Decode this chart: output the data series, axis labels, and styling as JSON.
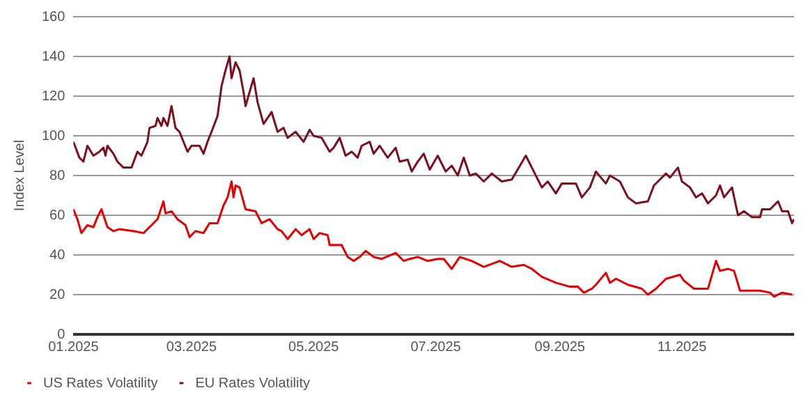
{
  "chart_data": {
    "type": "line",
    "ylabel": "Index Level",
    "ylim": [
      0,
      160
    ],
    "yticks": [
      0,
      20,
      40,
      60,
      80,
      100,
      120,
      140,
      160
    ],
    "xlim": [
      "2025-01-01",
      "2025-12-27"
    ],
    "xticks": [
      {
        "value": "2025-01-01",
        "label": "01.2025"
      },
      {
        "value": "2025-03-01",
        "label": "03.2025"
      },
      {
        "value": "2025-05-01",
        "label": "05.2025"
      },
      {
        "value": "2025-07-01",
        "label": "07.2025"
      },
      {
        "value": "2025-09-01",
        "label": "09.2025"
      },
      {
        "value": "2025-11-01",
        "label": "11.2025"
      }
    ],
    "grid": "y",
    "legend": "bottom",
    "marker": "none",
    "line_style": "solid",
    "series": [
      {
        "name": "US Rates Volatility",
        "color": "#e60000",
        "x": [
          "2025-01-01",
          "2025-01-03",
          "2025-01-05",
          "2025-01-08",
          "2025-01-11",
          "2025-01-13",
          "2025-01-15",
          "2025-01-18",
          "2025-01-21",
          "2025-01-24",
          "2025-01-31",
          "2025-02-05",
          "2025-02-07",
          "2025-02-12",
          "2025-02-15",
          "2025-02-16",
          "2025-02-19",
          "2025-02-22",
          "2025-02-26",
          "2025-02-28",
          "2025-03-03",
          "2025-03-07",
          "2025-03-10",
          "2025-03-14",
          "2025-03-17",
          "2025-03-19",
          "2025-03-21",
          "2025-03-22",
          "2025-03-23",
          "2025-03-25",
          "2025-03-28",
          "2025-04-02",
          "2025-04-05",
          "2025-04-09",
          "2025-04-13",
          "2025-04-15",
          "2025-04-18",
          "2025-04-22",
          "2025-04-25",
          "2025-04-29",
          "2025-05-01",
          "2025-05-04",
          "2025-05-08",
          "2025-05-09",
          "2025-05-15",
          "2025-05-18",
          "2025-05-21",
          "2025-05-24",
          "2025-05-27",
          "2025-05-31",
          "2025-06-04",
          "2025-06-11",
          "2025-06-15",
          "2025-06-18",
          "2025-06-22",
          "2025-06-27",
          "2025-07-02",
          "2025-07-05",
          "2025-07-09",
          "2025-07-13",
          "2025-07-19",
          "2025-07-25",
          "2025-08-02",
          "2025-08-08",
          "2025-08-14",
          "2025-08-18",
          "2025-08-23",
          "2025-08-30",
          "2025-09-06",
          "2025-09-10",
          "2025-09-13",
          "2025-09-17",
          "2025-09-19",
          "2025-09-24",
          "2025-09-26",
          "2025-09-29",
          "2025-10-05",
          "2025-10-12",
          "2025-10-15",
          "2025-10-19",
          "2025-10-24",
          "2025-10-31",
          "2025-11-02",
          "2025-11-07",
          "2025-11-14",
          "2025-11-18",
          "2025-11-20",
          "2025-11-24",
          "2025-11-27",
          "2025-11-30",
          "2025-12-10",
          "2025-12-15",
          "2025-12-17",
          "2025-12-21",
          "2025-12-26"
        ],
        "values": [
          63,
          58,
          51,
          55,
          54,
          59,
          63,
          54,
          52,
          53,
          52,
          51,
          53,
          58,
          67,
          61,
          62,
          58,
          55,
          49,
          52,
          51,
          56,
          56,
          65,
          69,
          77,
          69,
          75,
          74,
          63,
          62,
          56,
          58,
          53,
          52,
          48,
          53,
          50,
          53,
          48,
          51,
          50,
          45,
          45,
          39,
          37,
          39,
          42,
          39,
          38,
          41,
          37,
          38,
          39,
          37,
          38,
          38,
          33,
          39,
          37,
          34,
          37,
          34,
          35,
          33,
          29,
          26,
          24,
          24,
          21,
          23,
          25,
          31,
          26,
          28,
          25,
          23,
          20,
          23,
          28,
          30,
          27,
          23,
          23,
          37,
          32,
          33,
          32,
          22,
          22,
          21,
          19,
          21,
          20
        ]
      },
      {
        "name": "EU Rates Volatility",
        "color": "#7d0f1c",
        "x": [
          "2025-01-01",
          "2025-01-04",
          "2025-01-06",
          "2025-01-08",
          "2025-01-11",
          "2025-01-14",
          "2025-01-16",
          "2025-01-17",
          "2025-01-18",
          "2025-01-21",
          "2025-01-23",
          "2025-01-26",
          "2025-01-30",
          "2025-02-02",
          "2025-02-04",
          "2025-02-07",
          "2025-02-08",
          "2025-02-11",
          "2025-02-12",
          "2025-02-14",
          "2025-02-15",
          "2025-02-17",
          "2025-02-19",
          "2025-02-21",
          "2025-02-23",
          "2025-02-25",
          "2025-02-27",
          "2025-03-01",
          "2025-03-05",
          "2025-03-07",
          "2025-03-09",
          "2025-03-11",
          "2025-03-14",
          "2025-03-16",
          "2025-03-18",
          "2025-03-20",
          "2025-03-21",
          "2025-03-23",
          "2025-03-25",
          "2025-03-27",
          "2025-03-28",
          "2025-04-01",
          "2025-04-03",
          "2025-04-06",
          "2025-04-10",
          "2025-04-13",
          "2025-04-16",
          "2025-04-18",
          "2025-04-22",
          "2025-04-26",
          "2025-04-29",
          "2025-05-01",
          "2025-05-05",
          "2025-05-09",
          "2025-05-11",
          "2025-05-14",
          "2025-05-17",
          "2025-05-20",
          "2025-05-23",
          "2025-05-25",
          "2025-05-29",
          "2025-05-31",
          "2025-06-03",
          "2025-06-07",
          "2025-06-11",
          "2025-06-13",
          "2025-06-17",
          "2025-06-19",
          "2025-06-22",
          "2025-06-25",
          "2025-06-28",
          "2025-07-02",
          "2025-07-06",
          "2025-07-09",
          "2025-07-12",
          "2025-07-15",
          "2025-07-18",
          "2025-07-21",
          "2025-07-25",
          "2025-07-29",
          "2025-08-03",
          "2025-08-08",
          "2025-08-15",
          "2025-08-18",
          "2025-08-23",
          "2025-08-26",
          "2025-08-30",
          "2025-09-02",
          "2025-09-09",
          "2025-09-12",
          "2025-09-16",
          "2025-09-19",
          "2025-09-24",
          "2025-09-26",
          "2025-10-01",
          "2025-10-05",
          "2025-10-09",
          "2025-10-15",
          "2025-10-18",
          "2025-10-24",
          "2025-10-26",
          "2025-10-30",
          "2025-11-01",
          "2025-11-05",
          "2025-11-08",
          "2025-11-11",
          "2025-11-14",
          "2025-11-18",
          "2025-11-20",
          "2025-11-22",
          "2025-11-26",
          "2025-11-29",
          "2025-12-02",
          "2025-12-06",
          "2025-12-10",
          "2025-12-11",
          "2025-12-15",
          "2025-12-19",
          "2025-12-21",
          "2025-12-24",
          "2025-12-26",
          "2025-12-27"
        ],
        "values": [
          97,
          89,
          87,
          95,
          90,
          92,
          94,
          90,
          95,
          91,
          87,
          84,
          84,
          92,
          90,
          97,
          104,
          105,
          109,
          105,
          109,
          105,
          115,
          104,
          102,
          97,
          92,
          95,
          95,
          91,
          97,
          102,
          110,
          125,
          133,
          140,
          129,
          137,
          133,
          122,
          115,
          129,
          117,
          106,
          112,
          102,
          104,
          99,
          102,
          97,
          103,
          100,
          99,
          92,
          94,
          99,
          90,
          92,
          89,
          95,
          97,
          91,
          95,
          89,
          94,
          87,
          88,
          82,
          87,
          91,
          83,
          90,
          82,
          85,
          80,
          89,
          80,
          81,
          77,
          81,
          77,
          78,
          90,
          84,
          74,
          77,
          71,
          76,
          76,
          69,
          74,
          82,
          76,
          80,
          77,
          69,
          66,
          67,
          75,
          81,
          79,
          84,
          77,
          74,
          69,
          71,
          66,
          70,
          75,
          69,
          74,
          60,
          62,
          59,
          59,
          63,
          63,
          67,
          62,
          62,
          56,
          58
        ]
      }
    ]
  }
}
